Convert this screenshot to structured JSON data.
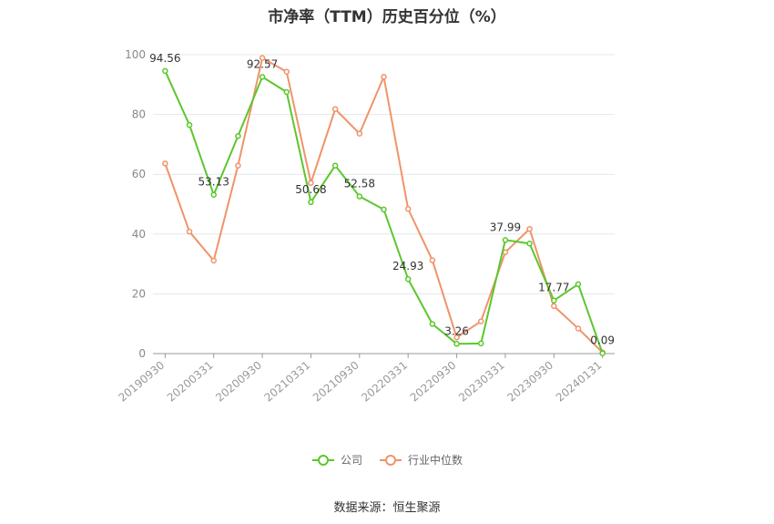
{
  "chart_data": {
    "type": "line",
    "title": "市净率（TTM）历史百分位（%）",
    "categories": [
      "20190930",
      "20191231",
      "20200331",
      "20200630",
      "20200930",
      "20201231",
      "20210331",
      "20210630",
      "20210930",
      "20211231",
      "20220331",
      "20220630",
      "20220930",
      "20221231",
      "20230331",
      "20230630",
      "20230930",
      "20231231",
      "20240131"
    ],
    "tick_labels": [
      "20190930",
      "20200331",
      "20200930",
      "20210331",
      "20210930",
      "20220331",
      "20220930",
      "20230331",
      "20230930",
      "20240131"
    ],
    "ylim": [
      0,
      100
    ],
    "yticks": [
      "0",
      "20",
      "40",
      "60",
      "80",
      "100"
    ],
    "series": [
      {
        "name": "公司",
        "color": "#5cc72d",
        "values": [
          94.56,
          76.5,
          53.13,
          72.8,
          92.57,
          87.5,
          50.68,
          62.9,
          52.58,
          48.2,
          24.93,
          9.9,
          3.26,
          3.4,
          37.99,
          36.8,
          17.77,
          23.2,
          0.09
        ]
      },
      {
        "name": "行业中位数",
        "color": "#f0936a",
        "values": [
          63.6,
          40.8,
          31.1,
          62.9,
          98.9,
          94.3,
          57.1,
          81.8,
          73.6,
          92.6,
          48.4,
          31.2,
          5.4,
          10.8,
          33.9,
          41.7,
          15.9,
          8.4,
          0.4
        ]
      }
    ],
    "data_labels": [
      {
        "index": 0,
        "text": "94.56"
      },
      {
        "index": 2,
        "text": "53.13"
      },
      {
        "index": 4,
        "text": "92.57"
      },
      {
        "index": 6,
        "text": "50.68"
      },
      {
        "index": 8,
        "text": "52.58"
      },
      {
        "index": 10,
        "text": "24.93"
      },
      {
        "index": 12,
        "text": "3.26"
      },
      {
        "index": 14,
        "text": "37.99"
      },
      {
        "index": 16,
        "text": "17.77"
      },
      {
        "index": 18,
        "text": "0.09"
      }
    ],
    "legend_position": "bottom",
    "grid": true
  },
  "source": "数据来源：恒生聚源"
}
